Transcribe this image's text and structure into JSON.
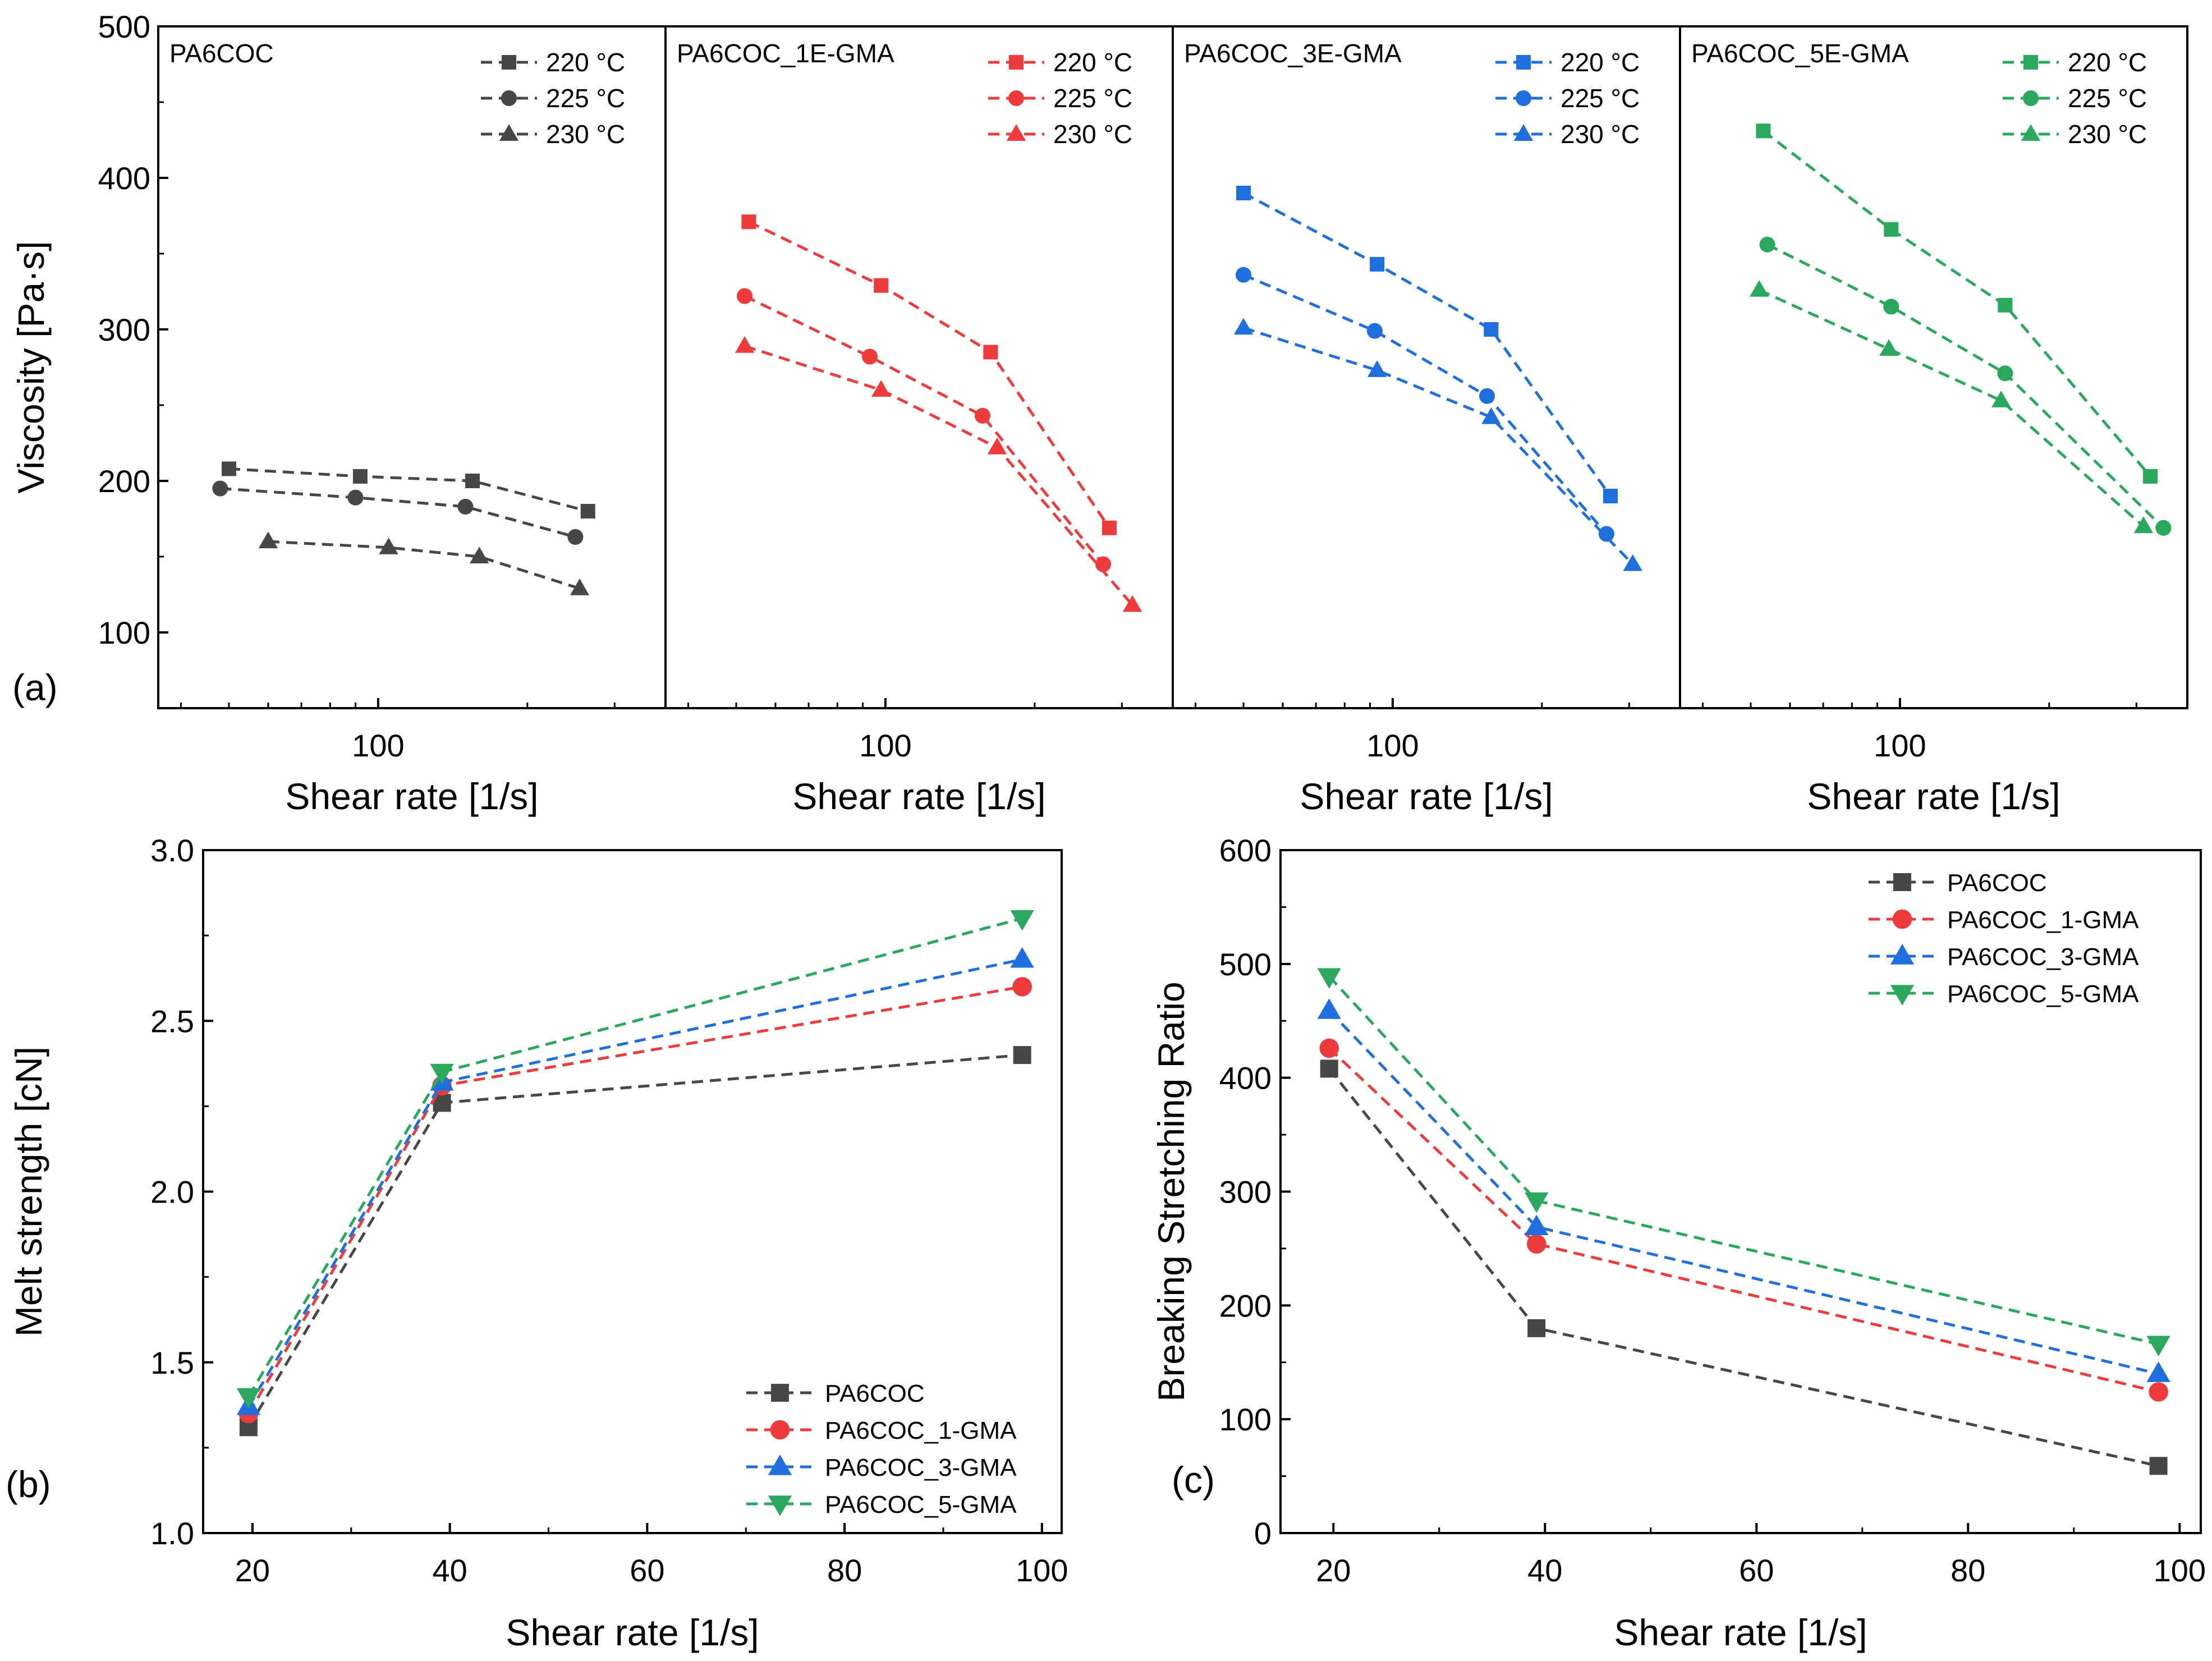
{
  "colors": {
    "PA6COC": "#474747",
    "1GMA": "#ee3b3b",
    "3GMA": "#1f6fde",
    "5GMA": "#2aa85e"
  },
  "panel_labels": {
    "a": "(a)",
    "b": "(b)",
    "c": "(c)"
  },
  "chart_data": [
    {
      "id": "a",
      "type": "line",
      "xscale": "log",
      "ylabel": "Viscosity [Pa·s]",
      "xlabel": "Shear rate [1/s]",
      "xlim": [
        36,
        380
      ],
      "ylim": [
        50,
        500
      ],
      "yticks": [
        100,
        200,
        300,
        400,
        500
      ],
      "xticks": [
        100
      ],
      "legend_position": "top-right",
      "panels": [
        {
          "title": "PA6COC",
          "color": "#474747",
          "series": [
            {
              "name": "220 °C",
              "marker": "square",
              "x": [
                50,
                92,
                155,
                265
              ],
              "y": [
                208,
                203,
                200,
                180
              ]
            },
            {
              "name": "225 °C",
              "marker": "circle",
              "x": [
                48,
                90,
                150,
                250
              ],
              "y": [
                195,
                189,
                183,
                163
              ]
            },
            {
              "name": "230 °C",
              "marker": "triangle",
              "x": [
                60,
                105,
                160,
                255
              ],
              "y": [
                160,
                156,
                150,
                129
              ]
            }
          ]
        },
        {
          "title": "PA6COC_1E-GMA",
          "color": "#ee3b3b",
          "series": [
            {
              "name": "220 °C",
              "marker": "square",
              "x": [
                53,
                98,
                163,
                283
              ],
              "y": [
                371,
                329,
                285,
                169
              ]
            },
            {
              "name": "225 °C",
              "marker": "circle",
              "x": [
                52,
                93,
                157,
                275
              ],
              "y": [
                322,
                282,
                243,
                145
              ]
            },
            {
              "name": "230 °C",
              "marker": "triangle",
              "x": [
                52,
                98,
                168,
                315
              ],
              "y": [
                289,
                260,
                222,
                118
              ]
            }
          ]
        },
        {
          "title": "PA6COC_3E-GMA",
          "color": "#1f6fde",
          "series": [
            {
              "name": "220 °C",
              "marker": "square",
              "x": [
                50,
                93,
                158,
                275
              ],
              "y": [
                390,
                343,
                300,
                190
              ]
            },
            {
              "name": "225 °C",
              "marker": "circle",
              "x": [
                50,
                92,
                155,
                270
              ],
              "y": [
                336,
                299,
                256,
                165
              ]
            },
            {
              "name": "230 °C",
              "marker": "triangle",
              "x": [
                50,
                93,
                158,
                305
              ],
              "y": [
                301,
                273,
                242,
                145
              ]
            }
          ]
        },
        {
          "title": "PA6COC_5E-GMA",
          "color": "#2aa85e",
          "series": [
            {
              "name": "220 °C",
              "marker": "square",
              "x": [
                53,
                96,
                163,
                320
              ],
              "y": [
                431,
                366,
                316,
                203
              ]
            },
            {
              "name": "225 °C",
              "marker": "circle",
              "x": [
                54,
                96,
                163,
                340
              ],
              "y": [
                356,
                315,
                271,
                169
              ]
            },
            {
              "name": "230 °C",
              "marker": "triangle",
              "x": [
                52,
                95,
                160,
                310
              ],
              "y": [
                326,
                287,
                253,
                170
              ]
            }
          ]
        }
      ]
    },
    {
      "id": "b",
      "type": "line",
      "ylabel": "Melt strength [cN]",
      "xlabel": "Shear rate [1/s]",
      "xlim": [
        15,
        102
      ],
      "ylim": [
        1.0,
        3.0
      ],
      "xticks": [
        20,
        40,
        60,
        80,
        100
      ],
      "yticks": [
        1.0,
        1.5,
        2.0,
        2.5,
        3.0
      ],
      "legend_position": "bottom-right",
      "series": [
        {
          "name": "PA6COC",
          "marker": "square",
          "color": "#474747",
          "x": [
            19.6,
            39.2,
            98
          ],
          "y": [
            1.31,
            2.26,
            2.4
          ]
        },
        {
          "name": "PA6COC_1-GMA",
          "marker": "circle",
          "color": "#ee3b3b",
          "x": [
            19.6,
            39.2,
            98
          ],
          "y": [
            1.35,
            2.31,
            2.6
          ]
        },
        {
          "name": "PA6COC_3-GMA",
          "marker": "triangle",
          "color": "#1f6fde",
          "x": [
            19.6,
            39.2,
            98
          ],
          "y": [
            1.37,
            2.32,
            2.68
          ]
        },
        {
          "name": "PA6COC_5-GMA",
          "marker": "triangle-down",
          "color": "#2aa85e",
          "x": [
            19.6,
            39.2,
            98
          ],
          "y": [
            1.4,
            2.35,
            2.8
          ]
        }
      ]
    },
    {
      "id": "c",
      "type": "line",
      "ylabel": "Breaking Stretching Ratio",
      "xlabel": "Shear rate [1/s]",
      "xlim": [
        15,
        102
      ],
      "ylim": [
        0,
        600
      ],
      "xticks": [
        20,
        40,
        60,
        80,
        100
      ],
      "yticks": [
        0,
        100,
        200,
        300,
        400,
        500,
        600
      ],
      "legend_position": "top-right",
      "series": [
        {
          "name": "PA6COC",
          "marker": "square",
          "color": "#474747",
          "x": [
            19.6,
            39.2,
            98
          ],
          "y": [
            408,
            180,
            59
          ]
        },
        {
          "name": "PA6COC_1-GMA",
          "marker": "circle",
          "color": "#ee3b3b",
          "x": [
            19.6,
            39.2,
            98
          ],
          "y": [
            426,
            254,
            124
          ]
        },
        {
          "name": "PA6COC_3-GMA",
          "marker": "triangle",
          "color": "#1f6fde",
          "x": [
            19.6,
            39.2,
            98
          ],
          "y": [
            459,
            269,
            140
          ]
        },
        {
          "name": "PA6COC_5-GMA",
          "marker": "triangle-down",
          "color": "#2aa85e",
          "x": [
            19.6,
            39.2,
            98
          ],
          "y": [
            489,
            292,
            166
          ]
        }
      ]
    }
  ]
}
